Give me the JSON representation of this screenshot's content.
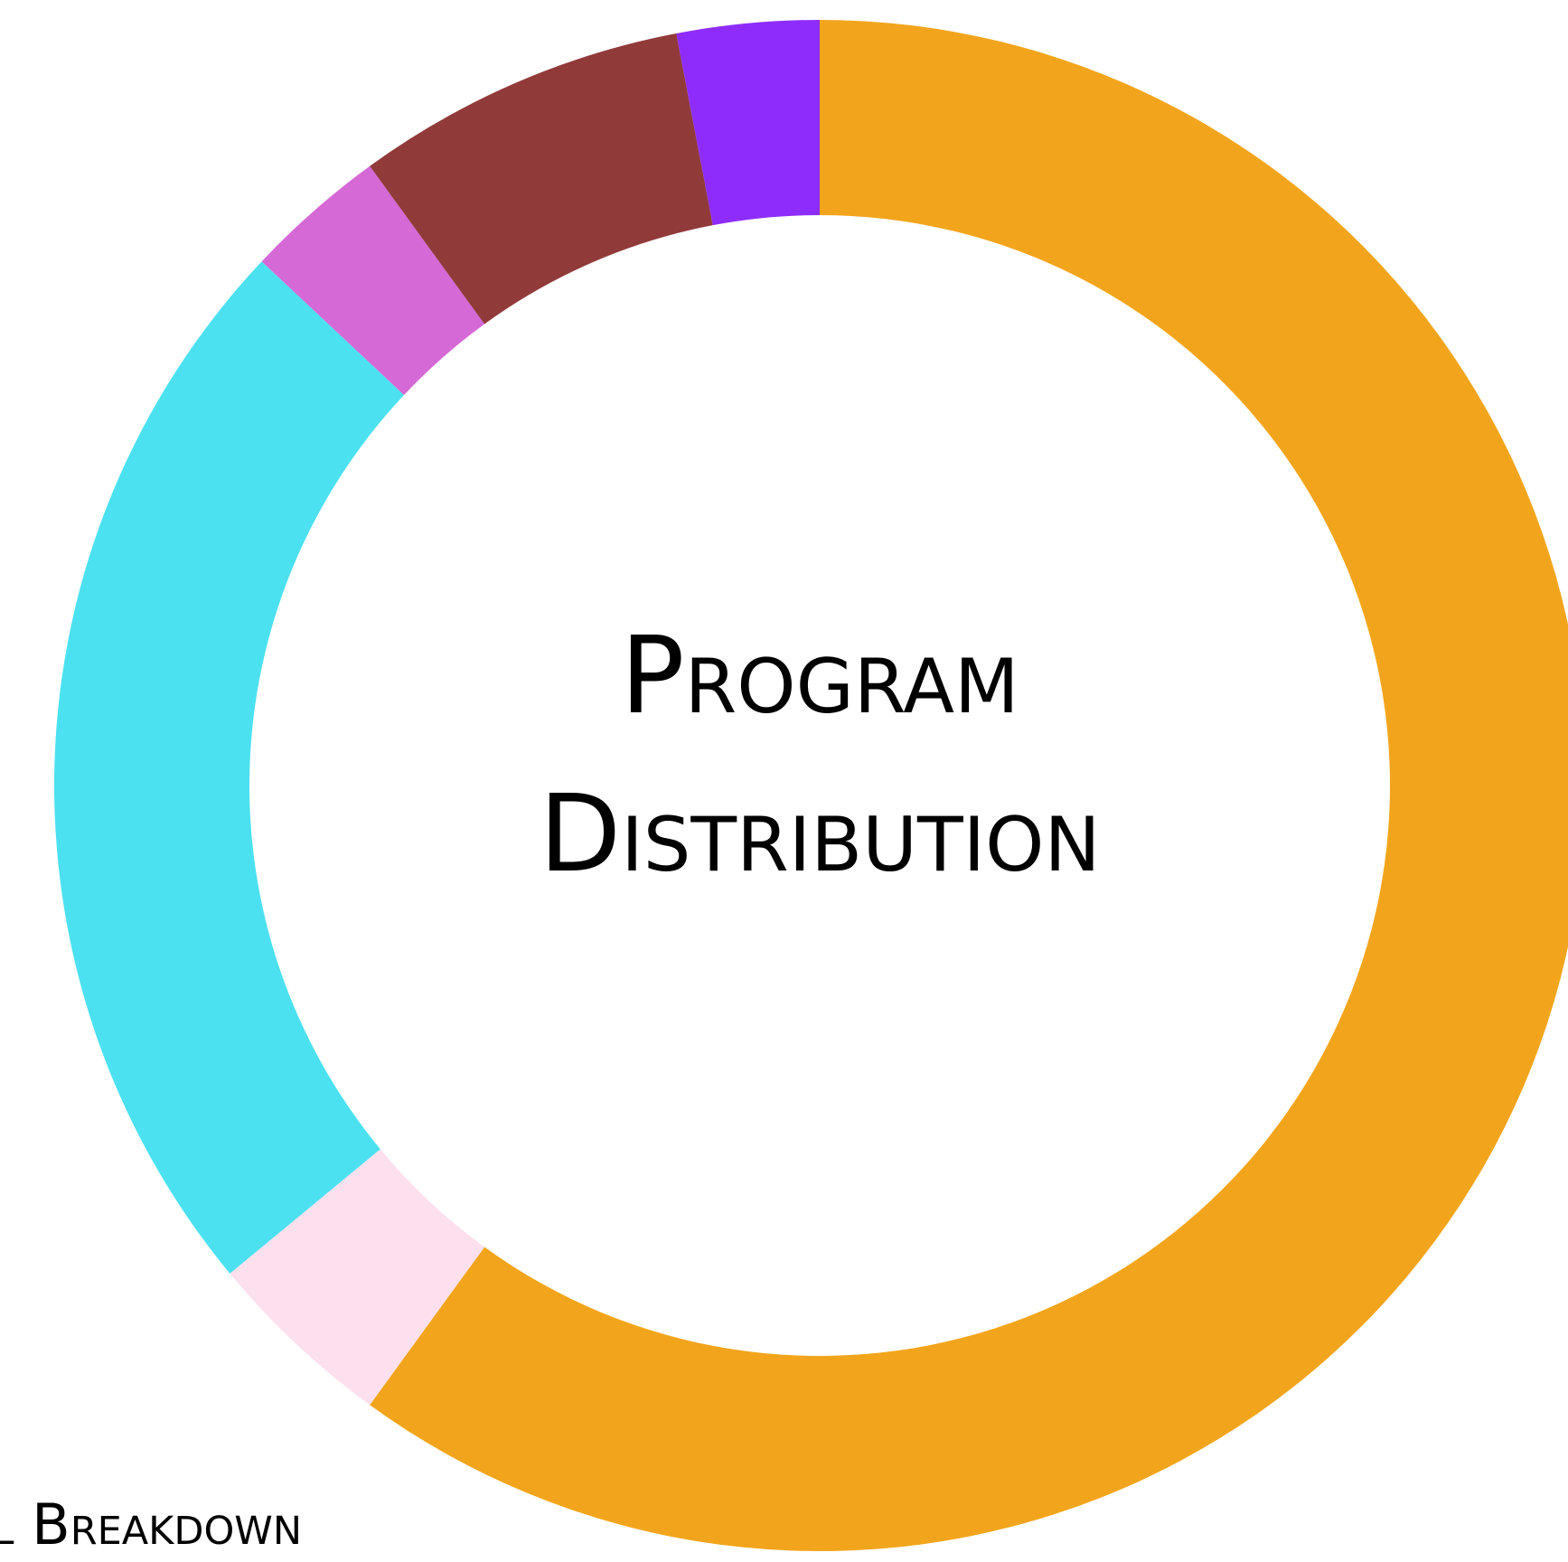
{
  "chart_data": {
    "type": "donut",
    "title": "Program Distribution",
    "subtitle": "Initial Breakdown",
    "values": [
      60,
      4,
      23,
      3,
      7,
      3
    ],
    "colors": [
      "#f2a51c",
      "#fde0ee",
      "#4be1f0",
      "#d569d6",
      "#913a3a",
      "#8e2dfb"
    ]
  }
}
